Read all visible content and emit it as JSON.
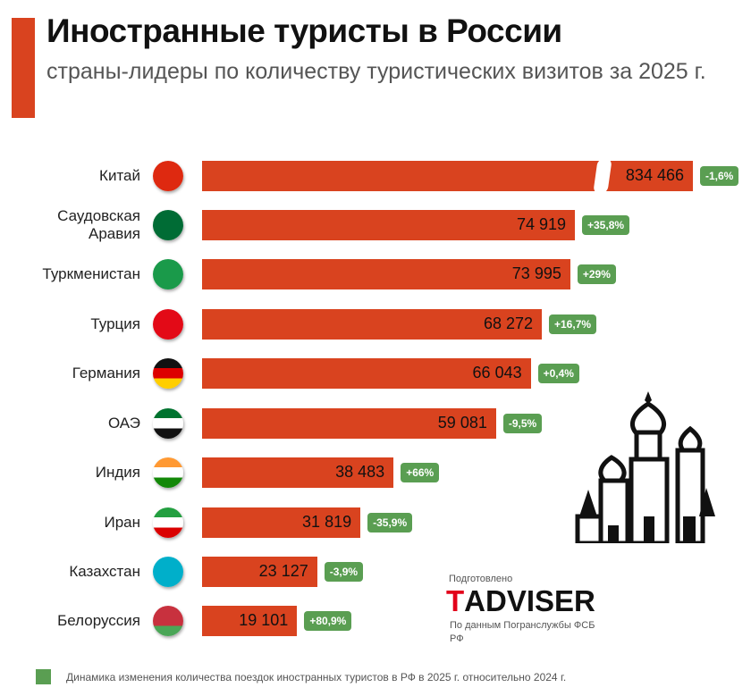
{
  "header": {
    "title": "Иностранные туристы в России",
    "subtitle": "страны-лидеры по количеству туристических визитов за 2025 г."
  },
  "chart_data": {
    "type": "bar",
    "orientation": "horizontal",
    "title": "Иностранные туристы в России",
    "subtitle": "страны-лидеры по количеству туристических визитов за 2025 г.",
    "categories": [
      "Китай",
      "Саудовская Аравия",
      "Туркменистан",
      "Турция",
      "Германия",
      "ОАЭ",
      "Индия",
      "Иран",
      "Казахстан",
      "Белоруссия"
    ],
    "values": [
      834466,
      74919,
      73995,
      68272,
      66043,
      59081,
      38483,
      31819,
      23127,
      19101
    ],
    "value_labels": [
      "834 466",
      "74 919",
      "73 995",
      "68 272",
      "66 043",
      "59 081",
      "38 483",
      "31 819",
      "23 127",
      "19 101"
    ],
    "change_labels": [
      "-1,6%",
      "+35,8%",
      "+29%",
      "+16,7%",
      "+0,4%",
      "-9,5%",
      "+66%",
      "-35,9%",
      "-3,9%",
      "+80,9%"
    ],
    "broken_bar": "Китай",
    "bar_color": "#d9431f",
    "change_color": "#5a9e52",
    "legend": "Динамика изменения количества поездок иностранных туристов в РФ в 2025 г. относительно 2024 г."
  },
  "footer": {
    "prepared": "Подготовлено",
    "logo_first": "T",
    "logo_rest": "ADVISER",
    "source": "По данным Погранслужбы ФСБ РФ"
  }
}
